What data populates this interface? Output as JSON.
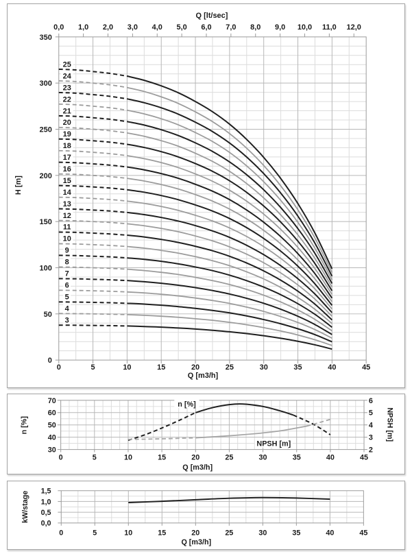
{
  "colors": {
    "curve_black": "#1f1f1f",
    "curve_gray": "#9b9b9b",
    "npsh_gray": "#a6a6a6",
    "grid_minor": "#dcdcdc",
    "grid_major": "#b7b7b7",
    "axis_line": "#9a9a9a",
    "text": "#1a1a1a",
    "label_bg": "#ffffff"
  },
  "chart_data": [
    {
      "id": "head-curves",
      "type": "line",
      "x_axis_bottom": {
        "label": "Q [m3/h]",
        "range": [
          0,
          45
        ],
        "tick_step": 5,
        "minor_step": 2.5,
        "tick_labels": [
          "0",
          "5",
          "10",
          "15",
          "20",
          "25",
          "30",
          "35",
          "40",
          "45"
        ]
      },
      "x_axis_top": {
        "label": "Q [lt/sec]",
        "lt_sec_to_m3h": 3.6,
        "tick_labels": [
          "0,0",
          "1,0",
          "2,0",
          "3,0",
          "4,0",
          "5,0",
          "6,0",
          "7,0",
          "8,0",
          "9,0",
          "10,0",
          "11,0",
          "12,0"
        ]
      },
      "y_axis": {
        "label": "H [m]",
        "range": [
          0,
          350
        ],
        "tick_step": 50,
        "minor_step": 10,
        "tick_labels": [
          "350",
          "300",
          "250",
          "200",
          "150",
          "100",
          "50",
          "0"
        ]
      },
      "stages": [
        3,
        4,
        5,
        6,
        7,
        8,
        9,
        10,
        11,
        12,
        13,
        14,
        15,
        16,
        17,
        18,
        19,
        20,
        21,
        22,
        23,
        24,
        25
      ],
      "stage_label_q": 1.2,
      "dashed_until_q": 10,
      "q_samples": [
        0,
        2.5,
        5,
        7.5,
        10,
        12.5,
        15,
        17.5,
        20,
        22.5,
        25,
        27.5,
        30,
        32.5,
        35,
        37.5,
        40
      ],
      "head_per_stage": [
        12.6,
        12.57,
        12.5,
        12.42,
        12.3,
        12.12,
        11.88,
        11.58,
        11.2,
        10.76,
        10.22,
        9.56,
        8.78,
        7.86,
        6.78,
        5.5,
        3.95
      ]
    },
    {
      "id": "efficiency-npsh",
      "type": "line",
      "x_axis": {
        "label": "Q [m3/h]",
        "range": [
          0,
          45
        ],
        "tick_step": 5,
        "minor_step": 1.25,
        "tick_labels": [
          "0",
          "5",
          "10",
          "15",
          "20",
          "25",
          "30",
          "35",
          "40",
          "45"
        ]
      },
      "y_axis_left": {
        "label": "n [%]",
        "range": [
          30,
          70
        ],
        "tick_step": 10,
        "minor_step": 5,
        "tick_labels": [
          "70",
          "60",
          "50",
          "40",
          "30"
        ]
      },
      "y_axis_right": {
        "label": "NPSH [m]",
        "range": [
          2,
          6
        ],
        "tick_step": 1,
        "tick_labels": [
          "6",
          "5",
          "4",
          "3",
          "2"
        ]
      },
      "series": [
        {
          "name": "efficiency",
          "axis": "left",
          "color": "#1f1f1f",
          "width": 2,
          "segments": [
            {
              "style": "dashed",
              "points": [
                [
                  10,
                  37.5
                ],
                [
                  12.5,
                  42
                ],
                [
                  15,
                  47.5
                ],
                [
                  17.5,
                  53.5
                ],
                [
                  20,
                  60
                ]
              ]
            },
            {
              "style": "solid",
              "points": [
                [
                  20,
                  60
                ],
                [
                  22.5,
                  64
                ],
                [
                  25,
                  66.5
                ],
                [
                  27,
                  67
                ],
                [
                  30,
                  65
                ],
                [
                  32.5,
                  61.5
                ],
                [
                  34.5,
                  58
                ]
              ]
            },
            {
              "style": "dashed",
              "points": [
                [
                  34.5,
                  58
                ],
                [
                  37.5,
                  50.5
                ],
                [
                  40,
                  42
                ]
              ]
            }
          ]
        },
        {
          "name": "npsh",
          "axis": "right",
          "color": "#a6a6a6",
          "width": 1.8,
          "segments": [
            {
              "style": "dashed",
              "points": [
                [
                  10,
                  2.82
                ],
                [
                  15,
                  2.87
                ],
                [
                  20,
                  2.95
                ]
              ]
            },
            {
              "style": "solid",
              "points": [
                [
                  20,
                  2.95
                ],
                [
                  25,
                  3.12
                ],
                [
                  30,
                  3.35
                ],
                [
                  33,
                  3.55
                ],
                [
                  36.5,
                  3.9
                ]
              ]
            },
            {
              "style": "dashed",
              "points": [
                [
                  36.5,
                  3.9
                ],
                [
                  40,
                  4.45
                ]
              ]
            }
          ]
        }
      ],
      "annotations": [
        {
          "text": "n [%]",
          "q": 18.7,
          "left_value": 67
        },
        {
          "text": "NPSH [m]",
          "q": 31.6,
          "left_value": 35
        }
      ]
    },
    {
      "id": "power-per-stage",
      "type": "line",
      "x_axis": {
        "label": "Q [m3/h]",
        "range": [
          0,
          45
        ],
        "tick_step": 5,
        "minor_step": 2.5,
        "tick_labels": [
          "0",
          "5",
          "10",
          "15",
          "20",
          "25",
          "30",
          "35",
          "40",
          "45"
        ]
      },
      "y_axis": {
        "label": "kW/stage",
        "range": [
          0,
          1.5
        ],
        "tick_step": 0.5,
        "minor_step": 0.25,
        "tick_labels": [
          "1,5",
          "1,0",
          "0,5",
          "0,0"
        ]
      },
      "series": [
        {
          "name": "power-per-stage",
          "color": "#1f1f1f",
          "width": 2,
          "segments": [
            {
              "style": "solid",
              "points": [
                [
                  10,
                  0.95
                ],
                [
                  15,
                  1.01
                ],
                [
                  20,
                  1.08
                ],
                [
                  25,
                  1.15
                ],
                [
                  30,
                  1.18
                ],
                [
                  35,
                  1.16
                ],
                [
                  40,
                  1.11
                ]
              ]
            }
          ]
        }
      ]
    }
  ]
}
